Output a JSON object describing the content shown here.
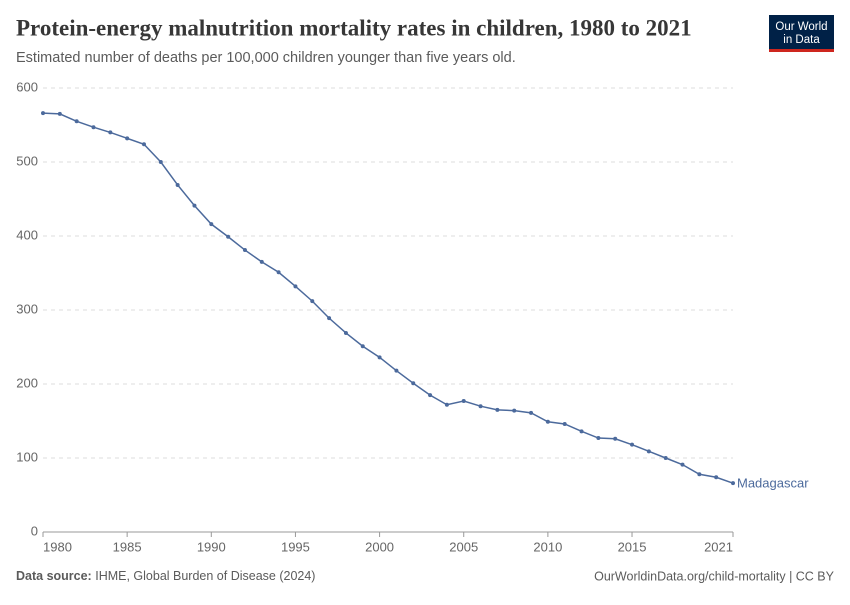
{
  "chart_data": {
    "type": "line",
    "title": "Protein-energy malnutrition mortality rates in children, 1980 to 2021",
    "subtitle": "Estimated number of deaths per 100,000 children younger than five years old.",
    "x": [
      1980,
      1981,
      1982,
      1983,
      1984,
      1985,
      1986,
      1987,
      1988,
      1989,
      1990,
      1991,
      1992,
      1993,
      1994,
      1995,
      1996,
      1997,
      1998,
      1999,
      2000,
      2001,
      2002,
      2003,
      2004,
      2005,
      2006,
      2007,
      2008,
      2009,
      2010,
      2011,
      2012,
      2013,
      2014,
      2015,
      2016,
      2017,
      2018,
      2019,
      2020,
      2021
    ],
    "series": [
      {
        "name": "Madagascar",
        "color": "#4c6a9c",
        "values": [
          566,
          565,
          555,
          547,
          540,
          532,
          524,
          500,
          469,
          441,
          416,
          399,
          381,
          365,
          351,
          332,
          312,
          289,
          269,
          251,
          236,
          218,
          201,
          185,
          172,
          177,
          170,
          165,
          164,
          161,
          149,
          146,
          136,
          127,
          126,
          118,
          109,
          100,
          91,
          78,
          74,
          66
        ]
      }
    ],
    "xlim": [
      1980,
      2021
    ],
    "xticks": [
      1980,
      1985,
      1990,
      1995,
      2000,
      2005,
      2010,
      2015,
      2021
    ],
    "ylim": [
      0,
      600
    ],
    "yticks": [
      0,
      100,
      200,
      300,
      400,
      500,
      600
    ],
    "grid": true,
    "source_label": "Data source:",
    "source": "IHME, Global Burden of Disease (2024)",
    "credit": "OurWorldinData.org/child-mortality | CC BY",
    "logo": [
      "Our World",
      "in Data"
    ]
  }
}
